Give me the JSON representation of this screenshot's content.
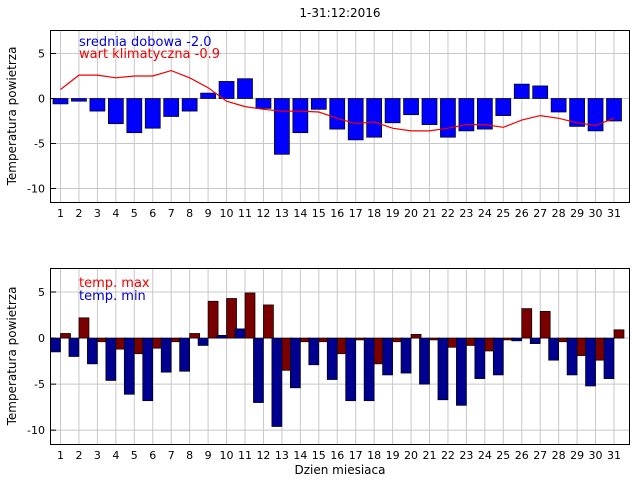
{
  "chart_data": [
    {
      "type": "bar",
      "title": "1-31:12:2016",
      "ylabel": "Temperatura powietrza",
      "ylim": [
        -11.5,
        7.5
      ],
      "yticks": [
        5,
        0,
        -5,
        -10
      ],
      "x": [
        1,
        2,
        3,
        4,
        5,
        6,
        7,
        8,
        9,
        10,
        11,
        12,
        13,
        14,
        15,
        16,
        17,
        18,
        19,
        20,
        21,
        22,
        23,
        24,
        25,
        26,
        27,
        28,
        29,
        30,
        31
      ],
      "legend": [
        {
          "label": "srednia dobowa -2.0",
          "color": "#0000dd"
        },
        {
          "label": "wart klimatyczna -0.9",
          "color": "#ee0000"
        }
      ],
      "series": [
        {
          "name": "srednia dobowa",
          "kind": "bar",
          "color": "#0000ff",
          "values": [
            -0.6,
            -0.3,
            -1.4,
            -2.8,
            -3.8,
            -3.3,
            -2.0,
            -1.4,
            0.6,
            1.9,
            2.2,
            -1.1,
            -6.2,
            -3.8,
            -1.2,
            -3.4,
            -4.6,
            -4.3,
            -2.7,
            -1.8,
            -2.9,
            -4.3,
            -3.6,
            -3.4,
            -1.9,
            1.6,
            1.4,
            -1.5,
            -3.1,
            -3.6,
            -2.5
          ]
        },
        {
          "name": "wart klimatyczna",
          "kind": "line",
          "color": "#ee0000",
          "values": [
            1.0,
            2.6,
            2.6,
            2.3,
            2.5,
            2.5,
            3.1,
            2.3,
            1.2,
            -0.3,
            -0.9,
            -1.2,
            -1.4,
            -1.4,
            -1.5,
            -2.2,
            -2.8,
            -2.6,
            -3.3,
            -3.6,
            -3.6,
            -3.3,
            -2.9,
            -2.9,
            -3.2,
            -2.4,
            -1.9,
            -2.2,
            -2.7,
            -3.0,
            -2.2
          ]
        }
      ]
    },
    {
      "type": "bar",
      "ylabel": "Temperatura powietrza",
      "xlabel": "Dzien miesiaca",
      "ylim": [
        -11.5,
        7.5
      ],
      "yticks": [
        5,
        0,
        -5,
        -10
      ],
      "x": [
        1,
        2,
        3,
        4,
        5,
        6,
        7,
        8,
        9,
        10,
        11,
        12,
        13,
        14,
        15,
        16,
        17,
        18,
        19,
        20,
        21,
        22,
        23,
        24,
        25,
        26,
        27,
        28,
        29,
        30,
        31
      ],
      "legend": [
        {
          "label": "temp. max",
          "color": "#ee0000"
        },
        {
          "label": "temp. min",
          "color": "#0000cc"
        }
      ],
      "series": [
        {
          "name": "temp. max",
          "kind": "bar",
          "color": "#7a0000",
          "values": [
            0.5,
            2.2,
            -0.4,
            -1.2,
            -1.7,
            -1.1,
            -0.4,
            0.5,
            4.0,
            4.3,
            4.9,
            3.6,
            -3.5,
            -0.4,
            -0.4,
            -1.7,
            -0.2,
            -2.8,
            -0.4,
            0.4,
            -0.2,
            -1.0,
            -0.8,
            -1.4,
            -0.2,
            3.2,
            2.9,
            -0.4,
            -1.9,
            -2.4,
            0.9
          ]
        },
        {
          "name": "temp. min",
          "kind": "bar",
          "color": "#000090",
          "values": [
            -1.5,
            -2.0,
            -2.8,
            -4.6,
            -6.1,
            -6.8,
            -3.7,
            -3.6,
            -0.8,
            0.3,
            1.0,
            -7.0,
            -9.6,
            -5.4,
            -2.9,
            -4.5,
            -6.8,
            -6.8,
            -4.0,
            -3.8,
            -5.0,
            -6.7,
            -7.3,
            -4.4,
            -4.0,
            -0.3,
            -0.6,
            -2.4,
            -4.0,
            -5.2,
            -4.4
          ]
        }
      ]
    }
  ]
}
